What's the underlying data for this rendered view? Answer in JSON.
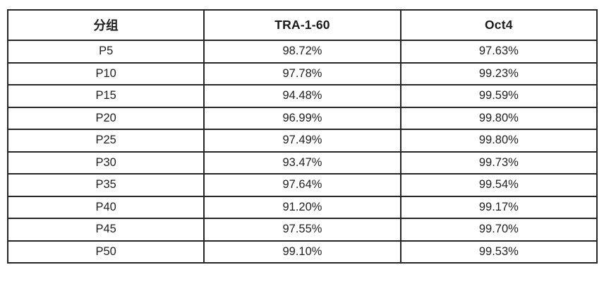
{
  "colors": {
    "background": "#ffffff",
    "table_border": "#262626",
    "header_text": "#1a1a1a",
    "cell_text": "#1f1f1f"
  },
  "table": {
    "headers": [
      "分组",
      "TRA-1-60",
      "Oct4"
    ],
    "rows": [
      {
        "group": "P5",
        "tra_1_60": "98.72%",
        "oct4": "97.63%"
      },
      {
        "group": "P10",
        "tra_1_60": "97.78%",
        "oct4": "99.23%"
      },
      {
        "group": "P15",
        "tra_1_60": "94.48%",
        "oct4": "99.59%"
      },
      {
        "group": "P20",
        "tra_1_60": "96.99%",
        "oct4": "99.80%"
      },
      {
        "group": "P25",
        "tra_1_60": "97.49%",
        "oct4": "99.80%"
      },
      {
        "group": "P30",
        "tra_1_60": "93.47%",
        "oct4": "99.73%"
      },
      {
        "group": "P35",
        "tra_1_60": "97.64%",
        "oct4": "99.54%"
      },
      {
        "group": "P40",
        "tra_1_60": "91.20%",
        "oct4": "99.17%"
      },
      {
        "group": "P45",
        "tra_1_60": "97.55%",
        "oct4": "99.70%"
      },
      {
        "group": "P50",
        "tra_1_60": "99.10%",
        "oct4": "99.53%"
      }
    ]
  },
  "chart_data": {
    "type": "table",
    "title": "",
    "columns": [
      "分组",
      "TRA-1-60",
      "Oct4"
    ],
    "categories": [
      "P5",
      "P10",
      "P15",
      "P20",
      "P25",
      "P30",
      "P35",
      "P40",
      "P45",
      "P50"
    ],
    "series": [
      {
        "name": "TRA-1-60",
        "values": [
          98.72,
          97.78,
          94.48,
          96.99,
          97.49,
          93.47,
          97.64,
          91.2,
          97.55,
          99.1
        ]
      },
      {
        "name": "Oct4",
        "values": [
          97.63,
          99.23,
          99.59,
          99.8,
          99.8,
          99.73,
          99.54,
          99.17,
          99.7,
          99.53
        ]
      }
    ],
    "unit": "%"
  }
}
